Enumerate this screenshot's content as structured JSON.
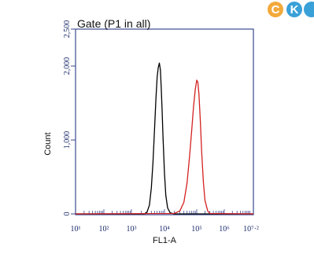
{
  "chart_data": {
    "type": "line",
    "title": "Gate (P1 in all)",
    "xlabel": "FL1-A",
    "ylabel": "Count",
    "x_scale": "log",
    "xlim": [
      10,
      10000000
    ],
    "ylim": [
      0,
      2500
    ],
    "x_tick_labels": [
      "10¹",
      "10²",
      "10³",
      "10⁴",
      "10⁵",
      "10⁶",
      "10⁷·²"
    ],
    "y_tick_labels": [
      "0",
      "1,000",
      "2,000",
      "2,500"
    ],
    "y_ticks": [
      0,
      1000,
      2000,
      2500
    ],
    "series": [
      {
        "color": "#000000",
        "x": [
          2500,
          3000,
          3500,
          4000,
          4500,
          5000,
          5500,
          6000,
          6500,
          7000,
          7500,
          8000,
          8500,
          9000,
          10000,
          11000,
          12500,
          15000,
          20000
        ],
        "y": [
          0,
          30,
          120,
          350,
          700,
          1150,
          1550,
          1850,
          1980,
          2040,
          1950,
          1700,
          1400,
          1050,
          550,
          250,
          80,
          15,
          0
        ]
      },
      {
        "color": "#d42020",
        "x": [
          20000,
          30000,
          40000,
          50000,
          60000,
          70000,
          80000,
          90000,
          100000,
          110000,
          120000,
          135000,
          150000,
          175000,
          200000,
          250000,
          300000
        ],
        "y": [
          5,
          40,
          160,
          420,
          780,
          1130,
          1460,
          1680,
          1810,
          1780,
          1620,
          1250,
          850,
          420,
          180,
          40,
          5
        ]
      }
    ],
    "grid": false
  },
  "logo": {
    "letters": [
      "C",
      "K"
    ],
    "colors": [
      "#f2a93b",
      "#3aa0d8"
    ]
  }
}
